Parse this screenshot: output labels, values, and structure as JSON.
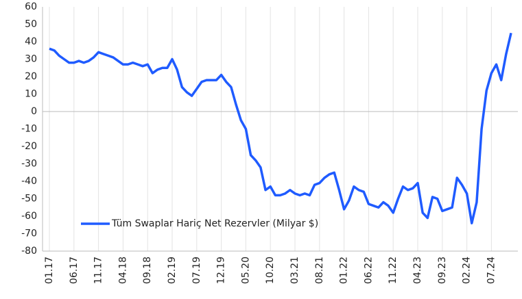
{
  "chart_data": {
    "type": "line",
    "categories": [
      "01.17",
      null,
      null,
      null,
      null,
      "06.17",
      null,
      null,
      null,
      null,
      "11.17",
      null,
      null,
      null,
      null,
      "04.18",
      null,
      null,
      null,
      null,
      "09.18",
      null,
      null,
      null,
      null,
      "02.19",
      null,
      null,
      null,
      null,
      "07.19",
      null,
      null,
      null,
      null,
      "12.19",
      null,
      null,
      null,
      null,
      "05.20",
      null,
      null,
      null,
      null,
      "10.20",
      null,
      null,
      null,
      null,
      "03.21",
      null,
      null,
      null,
      null,
      "08.21",
      null,
      null,
      null,
      null,
      "01.22",
      null,
      null,
      null,
      null,
      "06.22",
      null,
      null,
      null,
      null,
      "11.22",
      null,
      null,
      null,
      null,
      "04.23",
      null,
      null,
      null,
      null,
      "09.23",
      null,
      null,
      null,
      null,
      "02.24",
      null,
      null,
      null,
      null,
      "07.24",
      null,
      null,
      null,
      null
    ],
    "series": [
      {
        "name": "Tüm Swaplar Hariç Net Rezervler (Milyar $)",
        "color": "#1f5bff",
        "values": [
          36,
          35,
          32,
          30,
          28,
          28,
          29,
          28,
          29,
          31,
          34,
          33,
          32,
          31,
          29,
          27,
          27,
          28,
          27,
          26,
          27,
          22,
          24,
          25,
          25,
          30,
          24,
          14,
          11,
          9,
          13,
          17,
          18,
          18,
          18,
          21,
          17,
          14,
          4,
          -5,
          -10,
          -25,
          -28,
          -32,
          -45,
          -43,
          -48,
          -48,
          -47,
          -45,
          -47,
          -48,
          -47,
          -48,
          -42,
          -41,
          -38,
          -36,
          -35,
          -45,
          -56,
          -51,
          -43,
          -45,
          -46,
          -53,
          -54,
          -55,
          -52,
          -54,
          -58,
          -50,
          -43,
          -45,
          -44,
          -41,
          -58,
          -61,
          -49,
          -50,
          -57,
          -56,
          -55,
          -38,
          -42,
          -47,
          -64,
          -52,
          -10,
          12,
          22,
          27,
          18,
          33,
          45
        ]
      }
    ],
    "ylim": [
      -80,
      60
    ],
    "yticks": [
      -80,
      -70,
      -60,
      -50,
      -40,
      -30,
      -20,
      -10,
      0,
      10,
      20,
      30,
      40,
      50,
      60
    ],
    "grid": true,
    "legend": "lower left"
  }
}
